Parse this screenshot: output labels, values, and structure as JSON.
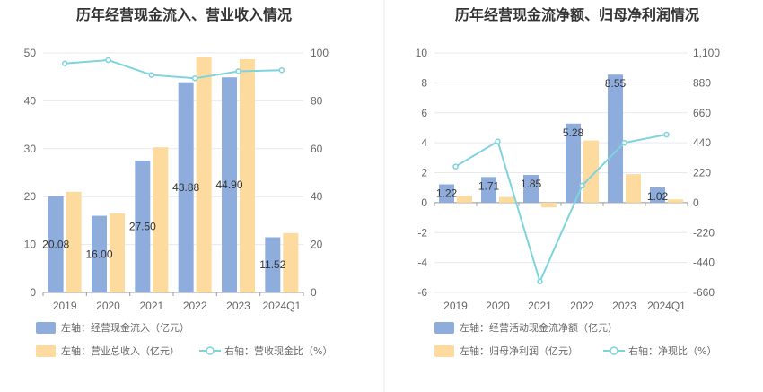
{
  "colors": {
    "bar_primary": "#8EADDD",
    "bar_secondary": "#FDDA9D",
    "line": "#7ED3DC",
    "grid": "#E6E9F0",
    "axis": "#999999"
  },
  "chart_data": [
    {
      "type": "bar",
      "title": "历年经营现金流入、营业收入情况",
      "categories": [
        "2019",
        "2020",
        "2021",
        "2022",
        "2023",
        "2024Q1"
      ],
      "y_left": {
        "min": 0,
        "max": 50,
        "ticks": [
          "0",
          "10",
          "20",
          "30",
          "40",
          "50"
        ]
      },
      "y_right": {
        "min": 0,
        "max": 100,
        "ticks": [
          "0",
          "20",
          "40",
          "60",
          "80",
          "100"
        ]
      },
      "series": [
        {
          "name": "左轴：经营现金流入（亿元）",
          "kind": "bar",
          "axis": "left",
          "values": [
            20.08,
            16.0,
            27.5,
            43.88,
            44.9,
            11.52
          ],
          "labels": [
            "20.08",
            "16.00",
            "27.50",
            "43.88",
            "44.90",
            "11.52"
          ]
        },
        {
          "name": "左轴：营业总收入（亿元）",
          "kind": "bar",
          "axis": "left",
          "values": [
            21.0,
            16.5,
            30.3,
            49.1,
            48.7,
            12.4
          ]
        },
        {
          "name": "右轴：营收现金比（%）",
          "kind": "line",
          "axis": "right",
          "values": [
            95.6,
            97.0,
            90.8,
            89.4,
            92.3,
            92.8
          ]
        }
      ],
      "grid": true,
      "legend_position": "bottom"
    },
    {
      "type": "bar",
      "title": "历年经营现金流净额、归母净利润情况",
      "categories": [
        "2019",
        "2020",
        "2021",
        "2022",
        "2023",
        "2024Q1"
      ],
      "y_left": {
        "min": -6,
        "max": 10,
        "ticks": [
          "-6",
          "-4",
          "-2",
          "0",
          "2",
          "4",
          "6",
          "8",
          "10"
        ]
      },
      "y_right": {
        "min": -660,
        "max": 1100,
        "ticks": [
          "-660",
          "-440",
          "-220",
          "0",
          "220",
          "440",
          "660",
          "880",
          "1,100"
        ]
      },
      "series": [
        {
          "name": "左轴：经营活动现金流净额（亿元）",
          "kind": "bar",
          "axis": "left",
          "values": [
            1.22,
            1.71,
            1.85,
            5.28,
            8.55,
            1.02
          ],
          "labels": [
            "1.22",
            "1.71",
            "1.85",
            "5.28",
            "8.55",
            "1.02"
          ]
        },
        {
          "name": "左轴：归母净利润（亿元）",
          "kind": "bar",
          "axis": "left",
          "values": [
            0.45,
            0.38,
            -0.32,
            4.15,
            1.9,
            0.22
          ]
        },
        {
          "name": "右轴：净现比（%）",
          "kind": "line",
          "axis": "right",
          "values": [
            265,
            450,
            -580,
            125,
            440,
            500
          ]
        }
      ],
      "grid": true,
      "legend_position": "bottom"
    }
  ]
}
